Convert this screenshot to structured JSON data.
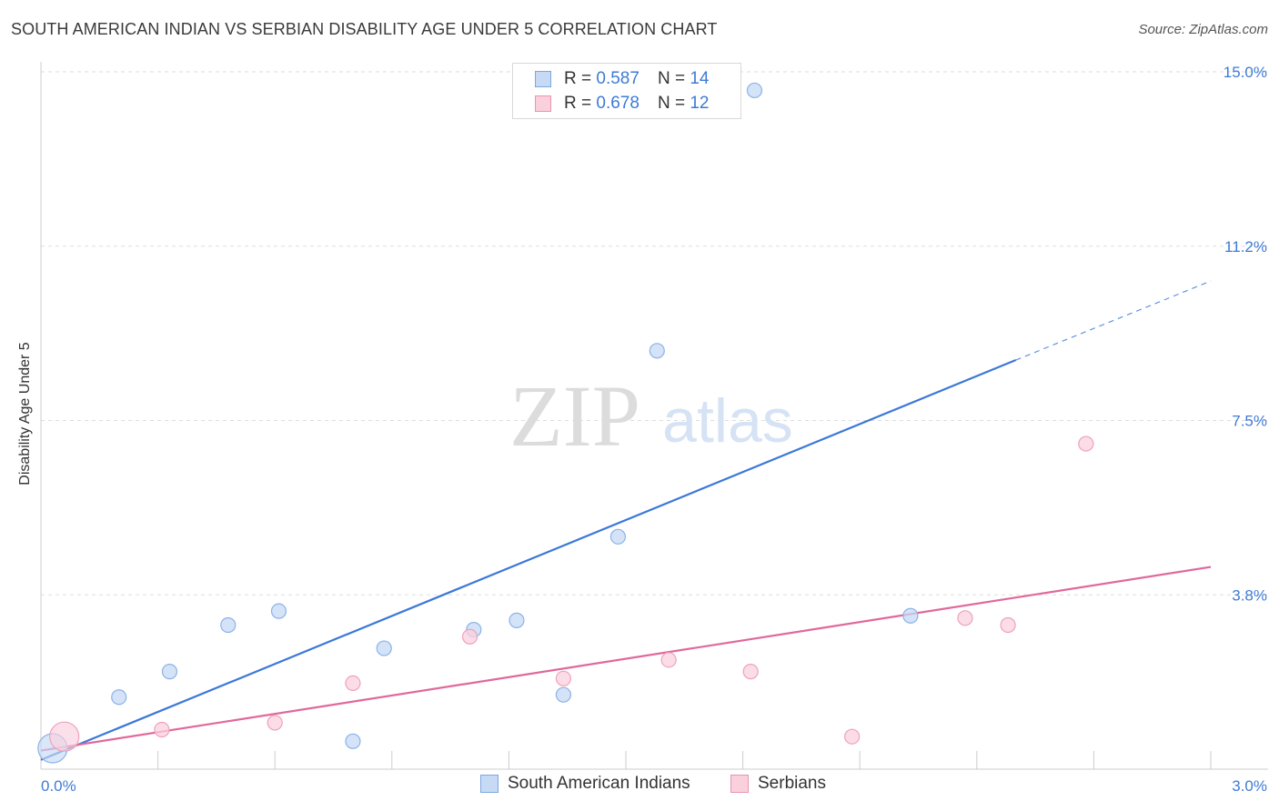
{
  "title": "SOUTH AMERICAN INDIAN VS SERBIAN DISABILITY AGE UNDER 5 CORRELATION CHART",
  "source": "Source: ZipAtlas.com",
  "watermark": {
    "zip": "ZIP",
    "atlas": "atlas"
  },
  "legend": {
    "r_label": "R = ",
    "n_label": "N = ",
    "series": [
      {
        "r": "0.587",
        "n": "14",
        "color": "#aecbf2",
        "border": "#7ea6de"
      },
      {
        "r": "0.678",
        "n": "12",
        "color": "#f8c3d3",
        "border": "#eb93ae"
      }
    ]
  },
  "bottom_legend": [
    "South American Indians",
    "Serbians"
  ],
  "chart_data": {
    "type": "scatter",
    "ylabel": "Disability Age Under 5",
    "xlabel": "",
    "xlim": [
      0,
      3.0
    ],
    "ylim": [
      0,
      15.0
    ],
    "x_tick_labels": [
      "0.0%",
      "3.0%"
    ],
    "y_tick_labels": [
      "3.8%",
      "7.5%",
      "11.2%",
      "15.0%"
    ],
    "y_tick_values": [
      3.75,
      7.5,
      11.25,
      15.0
    ],
    "grid": true,
    "legend_position": "top-center",
    "series": [
      {
        "name": "South American Indians",
        "color": "#3c78d8",
        "fill": "#c6daf5",
        "stroke": "#8cb2e6",
        "points": [
          {
            "x": 0.03,
            "y": 0.45,
            "big": true
          },
          {
            "x": 0.2,
            "y": 1.55
          },
          {
            "x": 0.33,
            "y": 2.1
          },
          {
            "x": 0.48,
            "y": 3.1
          },
          {
            "x": 0.61,
            "y": 3.4
          },
          {
            "x": 0.8,
            "y": 0.6
          },
          {
            "x": 0.88,
            "y": 2.6
          },
          {
            "x": 1.11,
            "y": 3.0
          },
          {
            "x": 1.22,
            "y": 3.2
          },
          {
            "x": 1.34,
            "y": 1.6
          },
          {
            "x": 1.48,
            "y": 5.0
          },
          {
            "x": 1.58,
            "y": 9.0
          },
          {
            "x": 1.83,
            "y": 14.6
          },
          {
            "x": 2.23,
            "y": 3.3
          }
        ],
        "trend": {
          "x0": 0.0,
          "y0": 0.2,
          "x1": 2.5,
          "y1": 8.8,
          "dash_to_x": 3.0,
          "dash_to_y": 10.5
        }
      },
      {
        "name": "Serbians",
        "color": "#e0689a",
        "fill": "#fbd0dd",
        "stroke": "#eea2bb",
        "points": [
          {
            "x": 0.06,
            "y": 0.7,
            "big": true
          },
          {
            "x": 0.31,
            "y": 0.85
          },
          {
            "x": 0.6,
            "y": 1.0
          },
          {
            "x": 0.8,
            "y": 1.85
          },
          {
            "x": 1.1,
            "y": 2.85
          },
          {
            "x": 1.34,
            "y": 1.95
          },
          {
            "x": 1.61,
            "y": 2.35
          },
          {
            "x": 1.82,
            "y": 2.1
          },
          {
            "x": 2.08,
            "y": 0.7
          },
          {
            "x": 2.37,
            "y": 3.25
          },
          {
            "x": 2.48,
            "y": 3.1
          },
          {
            "x": 2.68,
            "y": 7.0
          }
        ],
        "trend": {
          "x0": 0.0,
          "y0": 0.4,
          "x1": 3.0,
          "y1": 4.35
        }
      }
    ]
  }
}
